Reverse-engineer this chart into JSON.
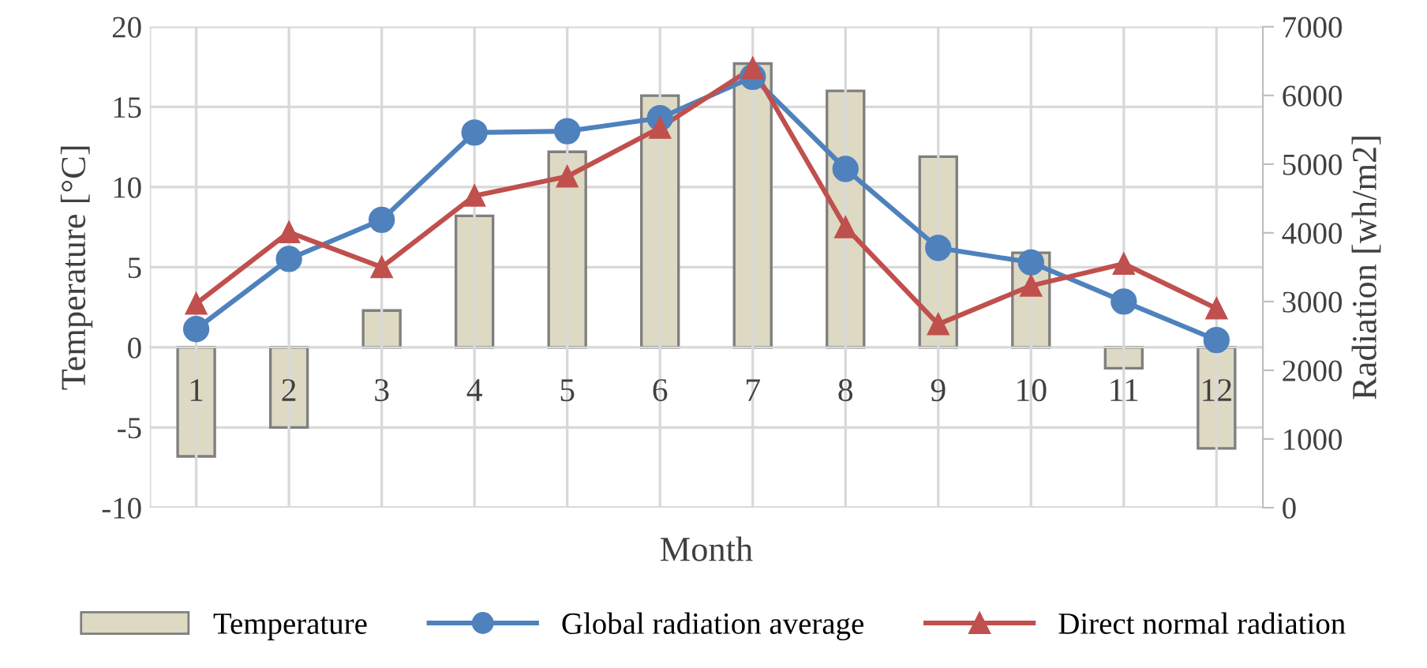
{
  "chart_data": {
    "type": "bar",
    "xlabel": "Month",
    "ylabel": "Temperature [°C]",
    "y2label": "Radiation [wh/m2]",
    "categories": [
      "1",
      "2",
      "3",
      "4",
      "5",
      "6",
      "7",
      "8",
      "9",
      "10",
      "11",
      "12"
    ],
    "series": [
      {
        "name": "Temperature",
        "color": "#ddd9c3",
        "values": [
          -6.8,
          -5.0,
          2.3,
          8.2,
          12.2,
          15.7,
          17.7,
          16.0,
          11.9,
          5.9,
          -1.3,
          -6.3
        ]
      },
      {
        "name": "Global radiation average",
        "type": "line",
        "axis": "y2",
        "marker": "circle",
        "color": "#4f81bd",
        "values": [
          2600,
          3620,
          4190,
          5460,
          5480,
          5670,
          6270,
          4930,
          3780,
          3570,
          3000,
          2440
        ]
      },
      {
        "name": "Direct normal radiation",
        "type": "line",
        "axis": "y2",
        "marker": "triangle",
        "color": "#c0504d",
        "values": [
          2970,
          4010,
          3500,
          4540,
          4820,
          5530,
          6400,
          4080,
          2670,
          3230,
          3550,
          2900
        ]
      }
    ],
    "ylim": [
      -10,
      20
    ],
    "yticks": [
      -10,
      -5,
      0,
      5,
      10,
      15,
      20
    ],
    "y2lim": [
      0,
      7000
    ],
    "y2ticks": [
      0,
      1000,
      2000,
      3000,
      4000,
      5000,
      6000,
      7000
    ],
    "grid": true,
    "legend": "bottom"
  }
}
